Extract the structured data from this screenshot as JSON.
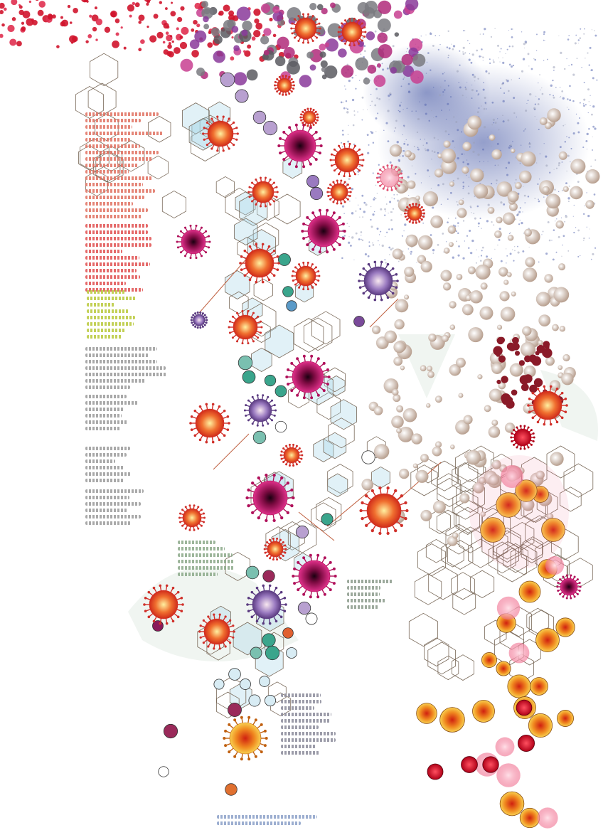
{
  "palette": {
    "crimson": "#d0142c",
    "magenta": "#b02a7a",
    "purple": "#8a6bb0",
    "orange_red": "#ee4a2a",
    "teal": "#3aa58c",
    "light_blue": "#a8d6e8",
    "navy_cloud": "#3c4fa0",
    "beige": "#d8c8b8",
    "amber": "#f0a020",
    "grey_text": "#8a8a8a",
    "red_text": "#e05050",
    "lime_text": "#b8c838",
    "network_line": "#7a6a5a"
  },
  "icons": [
    "virus-icon",
    "cell-icon",
    "molecule-network-icon",
    "particle-cloud-icon"
  ]
}
